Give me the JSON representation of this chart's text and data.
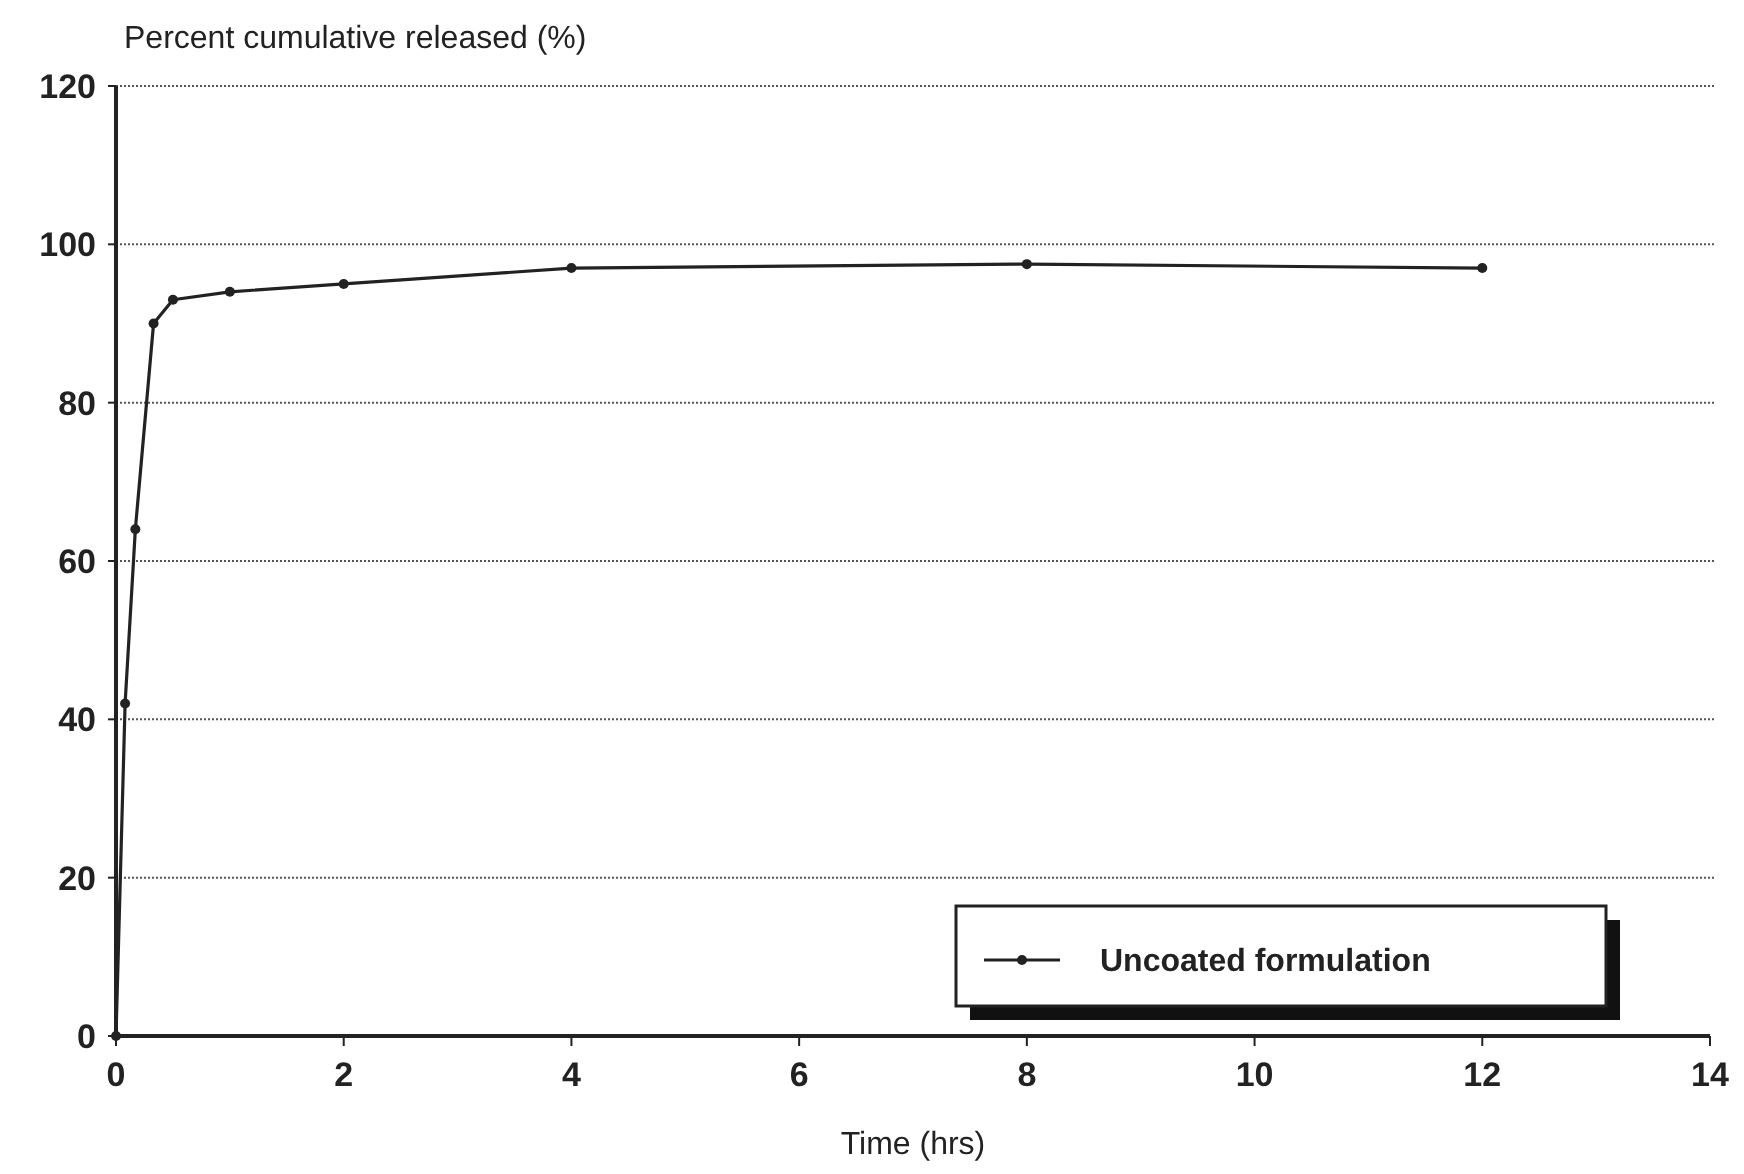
{
  "chart_data": {
    "type": "line",
    "ylabel": "Percent cumulative released (%)",
    "xlabel": "Time (hrs)",
    "x": [
      0,
      0.08,
      0.17,
      0.33,
      0.5,
      1,
      2,
      4,
      8,
      12
    ],
    "series": [
      {
        "name": "Uncoated formulation",
        "color": "#222222",
        "values": [
          0,
          42,
          64,
          90,
          93,
          94,
          95,
          97,
          97.5,
          97
        ]
      }
    ],
    "xlim": [
      0,
      14
    ],
    "xticks": [
      0,
      2,
      4,
      6,
      8,
      10,
      12,
      14
    ],
    "ylim": [
      0,
      120
    ],
    "yticks": [
      0,
      20,
      40,
      60,
      80,
      100,
      120
    ],
    "grid": "y",
    "legend": "bottom right",
    "marker": "circle",
    "line_style": "solid"
  }
}
